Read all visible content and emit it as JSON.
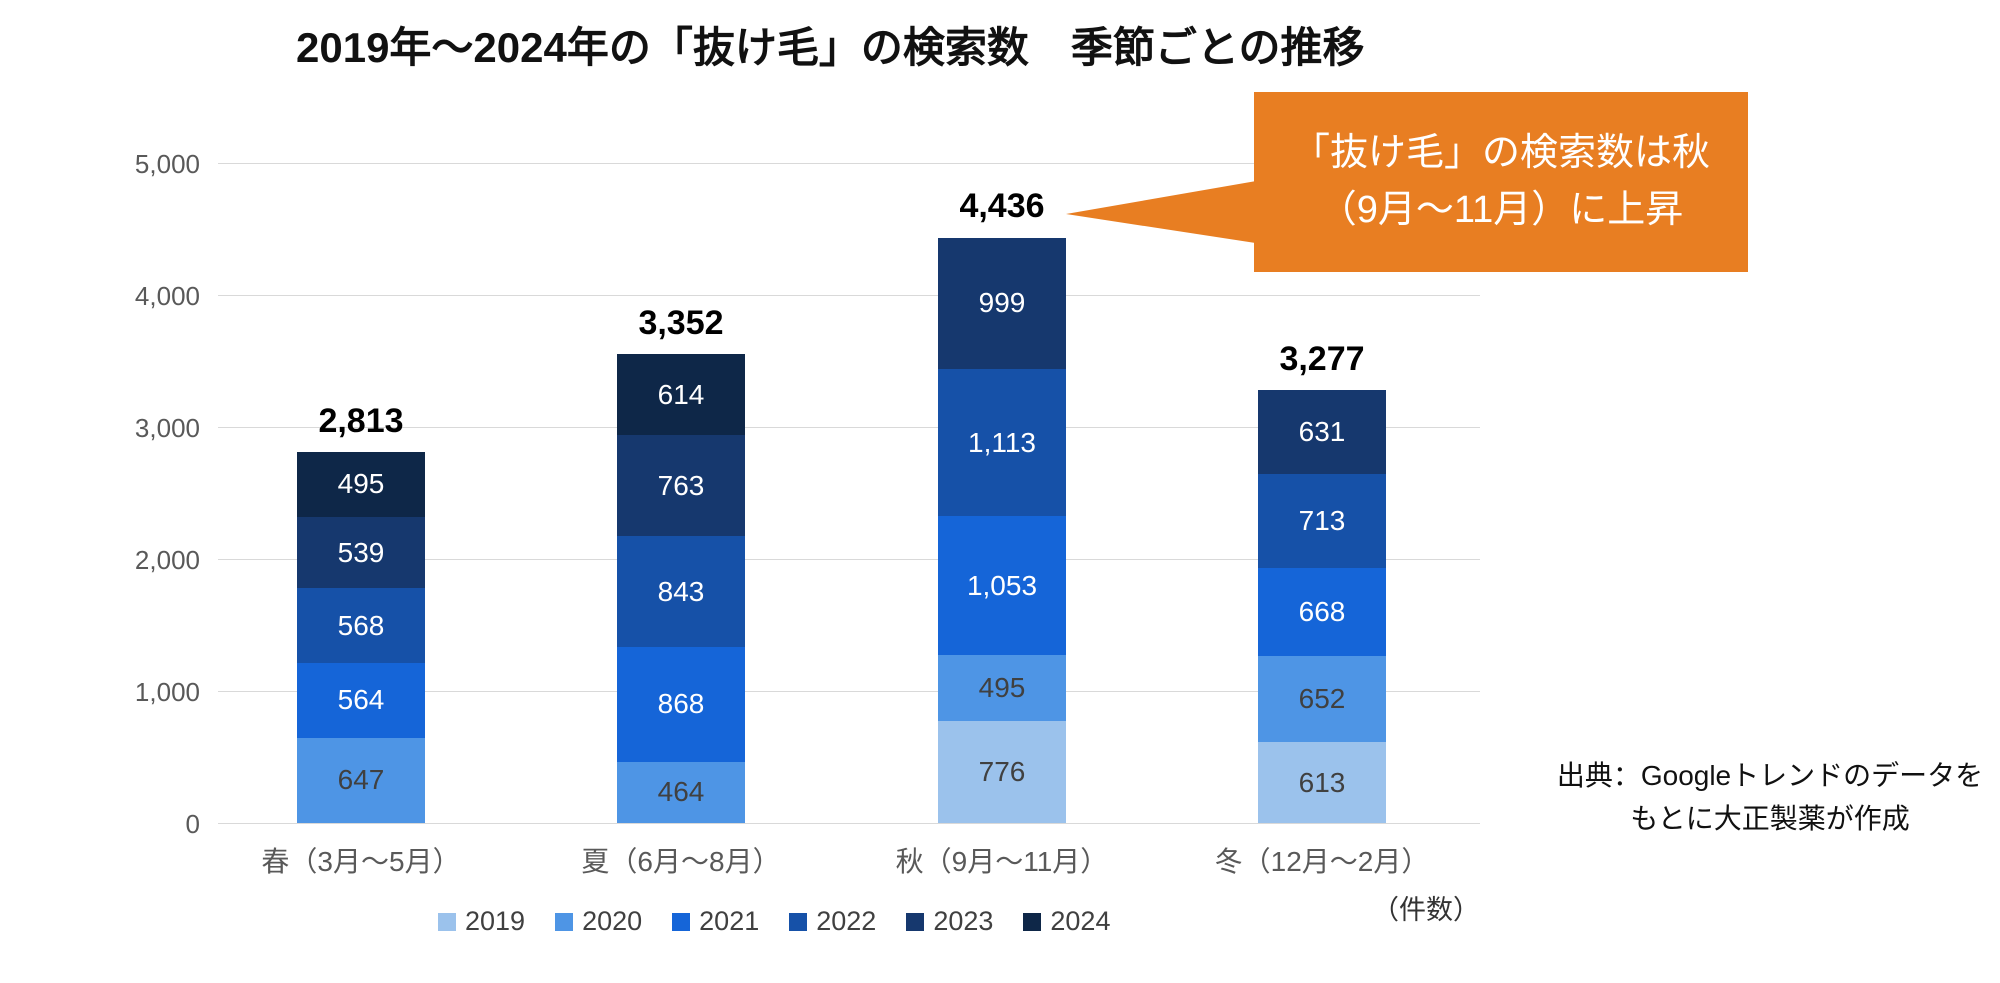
{
  "title": "2019年〜2024年の「抜け毛」の検索数　季節ごとの推移",
  "colors": {
    "series": {
      "2019": "#9BC2EC",
      "2020": "#4E95E5",
      "2021": "#1565D8",
      "2022": "#1651A8",
      "2023": "#16386E",
      "2024": "#0E2748"
    },
    "callout_bg": "#E87E22",
    "gridline": "#D9D9D9",
    "axis_text": "#595959",
    "total_text": "#000000",
    "segment_text_light": "#FFFFFF",
    "segment_text_dark": "#404040"
  },
  "chart_data": {
    "type": "bar",
    "stacked": true,
    "title": "2019年〜2024年の「抜け毛」の検索数　季節ごとの推移",
    "xlabel": "",
    "ylabel": "",
    "unit_label": "（件数）",
    "ylim": [
      0,
      5000
    ],
    "grid": true,
    "legend_position": "bottom",
    "legend": [
      "2019",
      "2020",
      "2021",
      "2022",
      "2023",
      "2024"
    ],
    "y_ticks": [
      "0",
      "1,000",
      "2,000",
      "3,000",
      "4,000",
      "5,000"
    ],
    "categories": [
      "春（3月〜5月）",
      "夏（6月〜8月）",
      "秋（9月〜11月）",
      "冬（12月〜2月）"
    ],
    "bars": [
      {
        "category": "春（3月〜5月）",
        "total_label": "2,813",
        "total": 2813,
        "segments": [
          {
            "year": "2020",
            "value": 647,
            "label": "647"
          },
          {
            "year": "2021",
            "value": 564,
            "label": "564"
          },
          {
            "year": "2022",
            "value": 568,
            "label": "568"
          },
          {
            "year": "2023",
            "value": 539,
            "label": "539"
          },
          {
            "year": "2024",
            "value": 495,
            "label": "495"
          }
        ]
      },
      {
        "category": "夏（6月〜8月）",
        "total_label": "3,352",
        "total": 3352,
        "segments": [
          {
            "year": "2020",
            "value": 464,
            "label": "464"
          },
          {
            "year": "2021",
            "value": 868,
            "label": "868"
          },
          {
            "year": "2022",
            "value": 843,
            "label": "843"
          },
          {
            "year": "2023",
            "value": 763,
            "label": "763"
          },
          {
            "year": "2024",
            "value": 614,
            "label": "614"
          }
        ]
      },
      {
        "category": "秋（9月〜11月）",
        "total_label": "4,436",
        "total": 4436,
        "segments": [
          {
            "year": "2019",
            "value": 776,
            "label": "776"
          },
          {
            "year": "2020",
            "value": 495,
            "label": "495"
          },
          {
            "year": "2021",
            "value": 1053,
            "label": "1,053"
          },
          {
            "year": "2022",
            "value": 1113,
            "label": "1,113"
          },
          {
            "year": "2023",
            "value": 999,
            "label": "999"
          }
        ]
      },
      {
        "category": "冬（12月〜2月）",
        "total_label": "3,277",
        "total": 3277,
        "segments": [
          {
            "year": "2019",
            "value": 613,
            "label": "613"
          },
          {
            "year": "2020",
            "value": 652,
            "label": "652"
          },
          {
            "year": "2021",
            "value": 668,
            "label": "668"
          },
          {
            "year": "2022",
            "value": 713,
            "label": "713"
          },
          {
            "year": "2023",
            "value": 631,
            "label": "631"
          }
        ]
      }
    ]
  },
  "callout": {
    "lines": [
      "「抜け毛」の検索数は秋",
      "（9月〜11月）に上昇"
    ]
  },
  "source": {
    "lines": [
      "出典：Googleトレンドのデータを",
      "もとに大正製薬が作成"
    ]
  }
}
